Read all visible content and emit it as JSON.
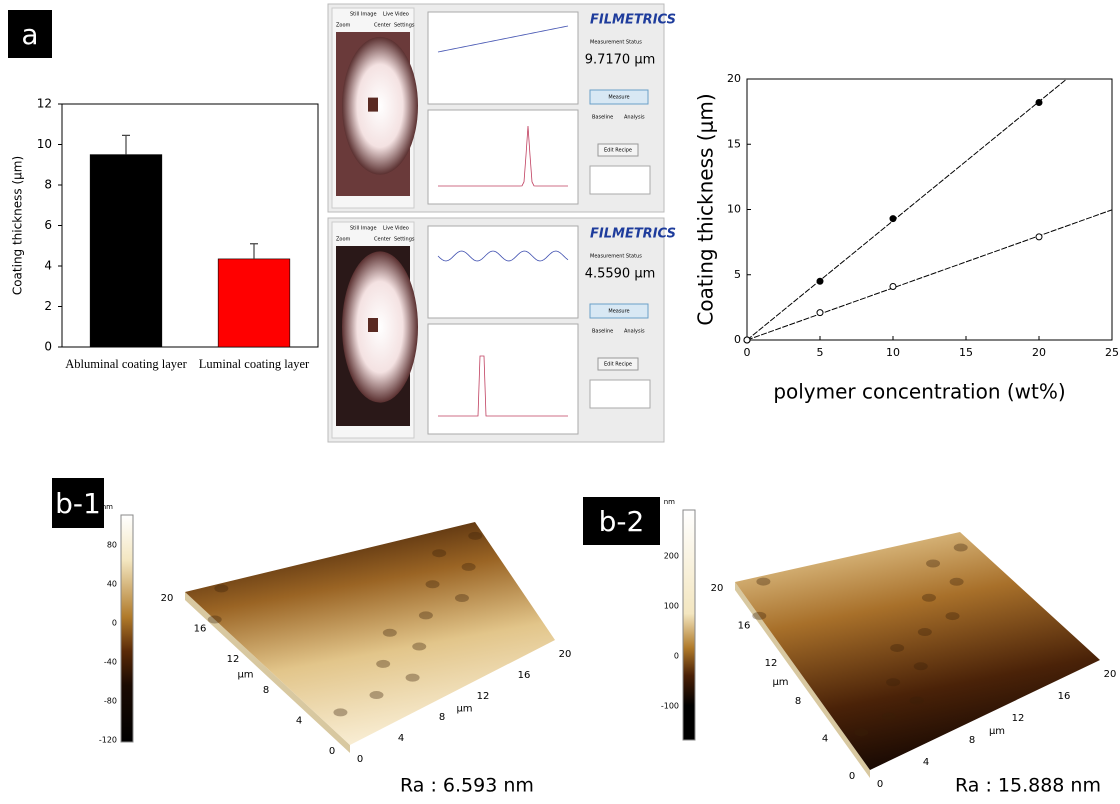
{
  "panel_labels": [
    "a",
    "b-1",
    "b-2"
  ],
  "chart_data": [
    {
      "type": "bar",
      "y_label": "Coating thickness (μm)",
      "categories": [
        "Abluminal coating layer",
        "Luminal coating layer"
      ],
      "values": [
        9.5,
        4.35
      ],
      "errors": [
        0.95,
        0.75
      ],
      "colors": [
        "#000000",
        "#ff0000"
      ],
      "ylim": [
        0,
        12
      ],
      "yticks": [
        0,
        2,
        4,
        6,
        8,
        10,
        12
      ]
    },
    {
      "type": "scatter",
      "x_label": "polymer concentration (wt%)",
      "y_label": "Coating thickness (μm)",
      "xlim": [
        0,
        25
      ],
      "xticks": [
        0,
        5,
        10,
        15,
        20,
        25
      ],
      "ylim": [
        0,
        20
      ],
      "yticks": [
        0,
        5,
        10,
        15,
        20
      ],
      "fit_line": true,
      "series": [
        {
          "color": "#000000",
          "marker": "filled",
          "x": [
            0,
            5,
            10,
            20
          ],
          "values": [
            0,
            4.5,
            9.3,
            18.2
          ]
        },
        {
          "color": "#000000",
          "marker": "open",
          "x": [
            0,
            5,
            10,
            20
          ],
          "values": [
            0,
            2.1,
            4.1,
            7.9
          ]
        }
      ]
    }
  ],
  "screenshots": [
    {
      "tabs": [
        "Still Image",
        "Live Video"
      ],
      "zoom": "Zoom",
      "buttons": [
        "Center",
        "Settings"
      ],
      "brand": "FILMETRICS",
      "status_label": "Measurement Status",
      "thickness": "9.7170 μm",
      "measure": "Measure",
      "actions": [
        "Baseline",
        "Analysis"
      ],
      "recipe": "Edit Recipe"
    },
    {
      "tabs": [
        "Still Image",
        "Live Video"
      ],
      "zoom": "Zoom",
      "buttons": [
        "Center",
        "Settings"
      ],
      "brand": "FILMETRICS",
      "status_label": "Measurement Status",
      "thickness": "4.5590 μm",
      "measure": "Measure",
      "actions": [
        "Baseline",
        "Analysis"
      ],
      "recipe": "Edit Recipe"
    }
  ],
  "afm": [
    {
      "unit": "nm",
      "colorbar_ticks": [
        "80",
        "40",
        "0",
        "-40",
        "-80",
        "-120"
      ],
      "axis_ticks": [
        "0",
        "4",
        "8",
        "12",
        "16",
        "20"
      ],
      "axis_unit": "μm",
      "roughness": "Ra : 6.593 nm"
    },
    {
      "unit": "nm",
      "colorbar_ticks": [
        "200",
        "100",
        "0",
        "-100"
      ],
      "axis_ticks": [
        "0",
        "4",
        "8",
        "12",
        "16",
        "20"
      ],
      "axis_unit": "μm",
      "roughness": "Ra : 15.888 nm"
    }
  ]
}
